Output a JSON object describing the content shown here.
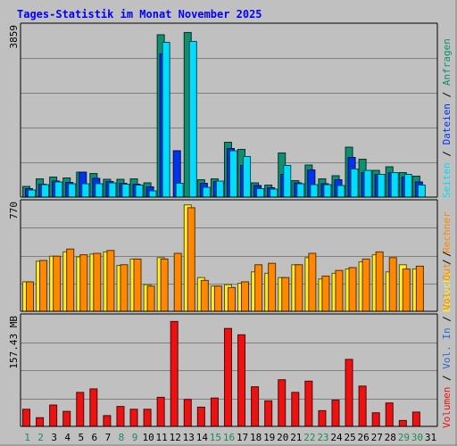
{
  "title": "Tages-Statistik im Monat November 2025",
  "colors": {
    "background": "#c0c0c0",
    "title": "#0000ff",
    "anfragen": "#0f8f6f",
    "dateien": "#0033ee",
    "seiten": "#00ddff",
    "besuche": "#ffee22",
    "rechner": "#ff8800",
    "volume": "#ee1111",
    "weekend_day": "#228855",
    "weekday": "#000000",
    "vol_in": "#3366cc",
    "vol_out": "#ff8800",
    "separator": "#000000"
  },
  "right_legend": {
    "top": [
      {
        "text": "Seiten",
        "color": "#00ddff"
      },
      {
        "text": " / ",
        "color": "#000000"
      },
      {
        "text": "Dateien",
        "color": "#0033ee"
      },
      {
        "text": " / ",
        "color": "#000000"
      },
      {
        "text": "Anfragen",
        "color": "#0f8f6f"
      }
    ],
    "mid": [
      {
        "text": "Besuche",
        "color": "#ffee22"
      },
      {
        "text": " / ",
        "color": "#000000"
      },
      {
        "text": "Rechner",
        "color": "#ff8800"
      }
    ],
    "bottom": [
      {
        "text": "Volumen",
        "color": "#ee1111"
      },
      {
        "text": " / ",
        "color": "#000000"
      },
      {
        "text": "Vol. In",
        "color": "#3366cc"
      },
      {
        "text": " / ",
        "color": "#000000"
      },
      {
        "text": "Vol. Out",
        "color": "#ff8800"
      },
      {
        "text": " / ",
        "color": "#000000"
      }
    ]
  },
  "chart_data": [
    {
      "type": "bar",
      "name": "requests-panel",
      "ymax_label": "3859",
      "ylim": [
        0,
        3859
      ],
      "categories": [
        "1",
        "2",
        "3",
        "4",
        "5",
        "6",
        "7",
        "8",
        "9",
        "10",
        "11",
        "12",
        "13",
        "14",
        "15",
        "16",
        "17",
        "18",
        "19",
        "20",
        "21",
        "22",
        "23",
        "24",
        "25",
        "26",
        "27",
        "28",
        "29",
        "30",
        "31"
      ],
      "weekend_days": [
        1,
        2,
        8,
        9,
        15,
        16,
        22,
        23,
        29,
        30
      ],
      "series": [
        {
          "name": "Anfragen",
          "values": [
            250,
            420,
            460,
            440,
            570,
            540,
            410,
            410,
            420,
            330,
            3650,
            0,
            3700,
            400,
            420,
            1240,
            1080,
            330,
            280,
            1000,
            380,
            730,
            420,
            490,
            1130,
            860,
            610,
            690,
            560,
            480,
            0
          ]
        },
        {
          "name": "Dateien",
          "values": [
            200,
            300,
            370,
            340,
            570,
            430,
            360,
            320,
            300,
            240,
            3220,
            1050,
            0,
            320,
            360,
            1100,
            720,
            270,
            220,
            520,
            330,
            620,
            310,
            400,
            900,
            560,
            520,
            560,
            460,
            350,
            0
          ]
        },
        {
          "name": "Seiten",
          "values": [
            170,
            290,
            350,
            310,
            310,
            310,
            330,
            300,
            280,
            150,
            3480,
            320,
            3500,
            230,
            370,
            1050,
            920,
            200,
            190,
            720,
            310,
            290,
            290,
            270,
            640,
            610,
            520,
            560,
            520,
            280,
            0
          ]
        }
      ]
    },
    {
      "type": "bar",
      "name": "visits-panel",
      "ymax_label": "770",
      "ylim": [
        0,
        770
      ],
      "categories": [
        "1",
        "2",
        "3",
        "4",
        "5",
        "6",
        "7",
        "8",
        "9",
        "10",
        "11",
        "12",
        "13",
        "14",
        "15",
        "16",
        "17",
        "18",
        "19",
        "20",
        "21",
        "22",
        "23",
        "24",
        "25",
        "26",
        "27",
        "28",
        "29",
        "30",
        "31"
      ],
      "series": [
        {
          "name": "Besuche",
          "values": [
            210,
            355,
            390,
            420,
            385,
            405,
            420,
            325,
            370,
            190,
            380,
            0,
            750,
            240,
            180,
            190,
            200,
            280,
            270,
            240,
            330,
            380,
            230,
            270,
            300,
            350,
            400,
            280,
            330,
            300,
            0
          ]
        },
        {
          "name": "Rechner",
          "values": [
            210,
            360,
            390,
            440,
            400,
            410,
            430,
            330,
            370,
            180,
            370,
            410,
            730,
            220,
            180,
            170,
            210,
            330,
            340,
            240,
            330,
            410,
            250,
            290,
            310,
            370,
            420,
            380,
            300,
            320,
            0
          ]
        }
      ]
    },
    {
      "type": "bar",
      "name": "volume-panel",
      "ymax_label": "157.43 MB",
      "ylim": [
        0,
        157.43
      ],
      "categories": [
        "1",
        "2",
        "3",
        "4",
        "5",
        "6",
        "7",
        "8",
        "9",
        "10",
        "11",
        "12",
        "13",
        "14",
        "15",
        "16",
        "17",
        "18",
        "19",
        "20",
        "21",
        "22",
        "23",
        "24",
        "25",
        "26",
        "27",
        "28",
        "29",
        "30",
        "31"
      ],
      "series": [
        {
          "name": "Volumen",
          "values": [
            25,
            13,
            31,
            22,
            49,
            54,
            16,
            29,
            25,
            25,
            42,
            150,
            39,
            28,
            41,
            140,
            131,
            57,
            37,
            67,
            49,
            65,
            23,
            38,
            96,
            58,
            20,
            34,
            9,
            21,
            0
          ]
        }
      ]
    }
  ]
}
